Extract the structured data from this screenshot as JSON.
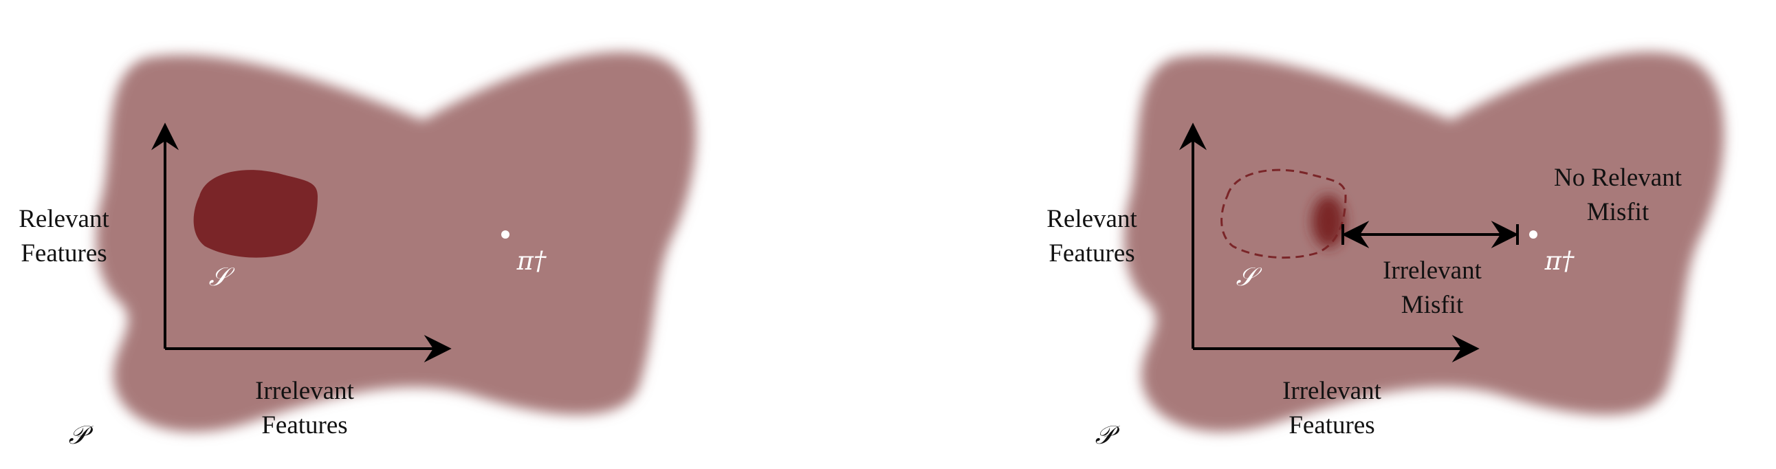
{
  "panels": [
    {
      "relevant_axis": [
        "Relevant",
        "Features"
      ],
      "irrelevant_axis": [
        "Irrelevant",
        "Features"
      ],
      "set_label": "𝒮",
      "space_label": "𝒫",
      "point_label": "π†"
    },
    {
      "relevant_axis": [
        "Relevant",
        "Features"
      ],
      "irrelevant_axis": [
        "Irrelevant",
        "Features"
      ],
      "set_label": "𝒮",
      "space_label": "𝒫",
      "point_label": "π†",
      "irrelevant_misfit": [
        "Irrelevant",
        "Misfit"
      ],
      "no_relevant_misfit": [
        "No Relevant",
        "Misfit"
      ]
    }
  ],
  "colors": {
    "space_fill": "#a87a7a",
    "set_fill": "#7a2528",
    "axis": "#000000",
    "point": "#ffffff"
  }
}
